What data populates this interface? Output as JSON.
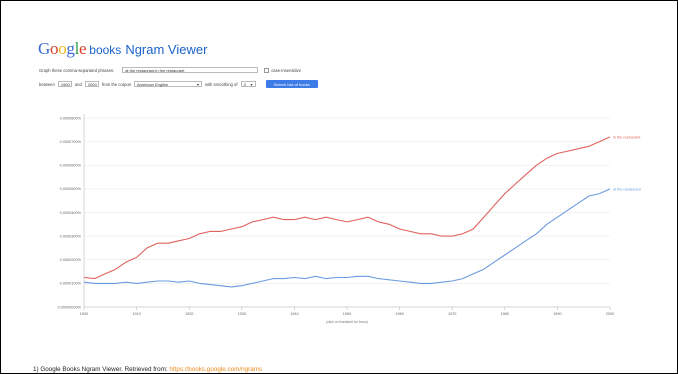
{
  "header": {
    "logo_letters": [
      {
        "ch": "G",
        "color": "#3a6ad4"
      },
      {
        "ch": "o",
        "color": "#d9412d"
      },
      {
        "ch": "o",
        "color": "#f1b81c"
      },
      {
        "ch": "g",
        "color": "#3a6ad4"
      },
      {
        "ch": "l",
        "color": "#2f9e46"
      },
      {
        "ch": "e",
        "color": "#d9412d"
      }
    ],
    "books_label": "books",
    "app_title": "Ngram Viewer"
  },
  "form": {
    "phrases_label": "Graph these comma-separated phrases:",
    "phrases_value": "at the restaurant,in the restaurant",
    "case_label": "case-insensitive",
    "between_label": "between",
    "start_year": "1900",
    "and_label": "and",
    "end_year": "2000",
    "corpus_label": "from the corpus",
    "corpus_value": "American English",
    "smoothing_label": "with smoothing of",
    "smoothing_value": "3",
    "search_button": "Search lots of books"
  },
  "chart_data": {
    "type": "line",
    "xlabel": "(click on line/label for focus)",
    "ylabel": "",
    "xlim": [
      1900,
      2000
    ],
    "ylim": [
      0,
      8e-07
    ],
    "x_ticks": [
      1900,
      1910,
      1920,
      1930,
      1940,
      1950,
      1960,
      1970,
      1980,
      1990,
      2000
    ],
    "y_ticks": [
      {
        "value": 0,
        "label": "0.00000000%"
      },
      {
        "value": 1e-07,
        "label": "0.0000100%"
      },
      {
        "value": 2e-07,
        "label": "0.0000200%"
      },
      {
        "value": 3e-07,
        "label": "0.0000300%"
      },
      {
        "value": 4e-07,
        "label": "0.0000400%"
      },
      {
        "value": 5e-07,
        "label": "0.0000500%"
      },
      {
        "value": 6e-07,
        "label": "0.0000600%"
      },
      {
        "value": 7e-07,
        "label": "0.0000700%"
      },
      {
        "value": 8e-07,
        "label": "0.0000800%"
      }
    ],
    "grid": true,
    "series": [
      {
        "name": "in the restaurant",
        "color": "#e0625b",
        "x": [
          1900,
          1902,
          1904,
          1906,
          1908,
          1910,
          1912,
          1914,
          1916,
          1918,
          1920,
          1922,
          1924,
          1926,
          1928,
          1930,
          1932,
          1934,
          1936,
          1938,
          1940,
          1942,
          1944,
          1946,
          1948,
          1950,
          1952,
          1954,
          1956,
          1958,
          1960,
          1962,
          1964,
          1966,
          1968,
          1970,
          1972,
          1974,
          1976,
          1978,
          1980,
          1982,
          1984,
          1986,
          1988,
          1990,
          1992,
          1994,
          1996,
          1998,
          2000
        ],
        "values": [
          1.25e-07,
          1.2e-07,
          1.4e-07,
          1.6e-07,
          1.9e-07,
          2.1e-07,
          2.5e-07,
          2.7e-07,
          2.7e-07,
          2.8e-07,
          2.9e-07,
          3.1e-07,
          3.2e-07,
          3.2e-07,
          3.3e-07,
          3.4e-07,
          3.6e-07,
          3.7e-07,
          3.8e-07,
          3.7e-07,
          3.7e-07,
          3.8e-07,
          3.7e-07,
          3.8e-07,
          3.7e-07,
          3.6e-07,
          3.7e-07,
          3.8e-07,
          3.6e-07,
          3.5e-07,
          3.3e-07,
          3.2e-07,
          3.1e-07,
          3.1e-07,
          3e-07,
          3e-07,
          3.1e-07,
          3.3e-07,
          3.8e-07,
          4.3e-07,
          4.8e-07,
          5.2e-07,
          5.6e-07,
          6e-07,
          6.3e-07,
          6.5e-07,
          6.6e-07,
          6.7e-07,
          6.8e-07,
          7e-07,
          7.2e-07
        ]
      },
      {
        "name": "at the restaurant",
        "color": "#6b9be0",
        "x": [
          1900,
          1902,
          1904,
          1906,
          1908,
          1910,
          1912,
          1914,
          1916,
          1918,
          1920,
          1922,
          1924,
          1926,
          1928,
          1930,
          1932,
          1934,
          1936,
          1938,
          1940,
          1942,
          1944,
          1946,
          1948,
          1950,
          1952,
          1954,
          1956,
          1958,
          1960,
          1962,
          1964,
          1966,
          1968,
          1970,
          1972,
          1974,
          1976,
          1978,
          1980,
          1982,
          1984,
          1986,
          1988,
          1990,
          1992,
          1994,
          1996,
          1998,
          2000
        ],
        "values": [
          1.05e-07,
          1e-07,
          1e-07,
          1e-07,
          1.05e-07,
          1e-07,
          1.05e-07,
          1.1e-07,
          1.1e-07,
          1.05e-07,
          1.1e-07,
          1e-07,
          9.5e-08,
          9e-08,
          8.5e-08,
          9e-08,
          1e-07,
          1.1e-07,
          1.2e-07,
          1.2e-07,
          1.25e-07,
          1.2e-07,
          1.3e-07,
          1.2e-07,
          1.25e-07,
          1.25e-07,
          1.3e-07,
          1.3e-07,
          1.2e-07,
          1.15e-07,
          1.1e-07,
          1.05e-07,
          1e-07,
          1e-07,
          1.05e-07,
          1.1e-07,
          1.2e-07,
          1.4e-07,
          1.6e-07,
          1.9e-07,
          2.2e-07,
          2.5e-07,
          2.8e-07,
          3.1e-07,
          3.5e-07,
          3.8e-07,
          4.1e-07,
          4.4e-07,
          4.7e-07,
          4.8e-07,
          5e-07
        ]
      }
    ]
  },
  "citation": {
    "text": "1) Google Books Ngram Viewer. Retrieved from:",
    "link": "https://books.google.com/ngrams"
  }
}
